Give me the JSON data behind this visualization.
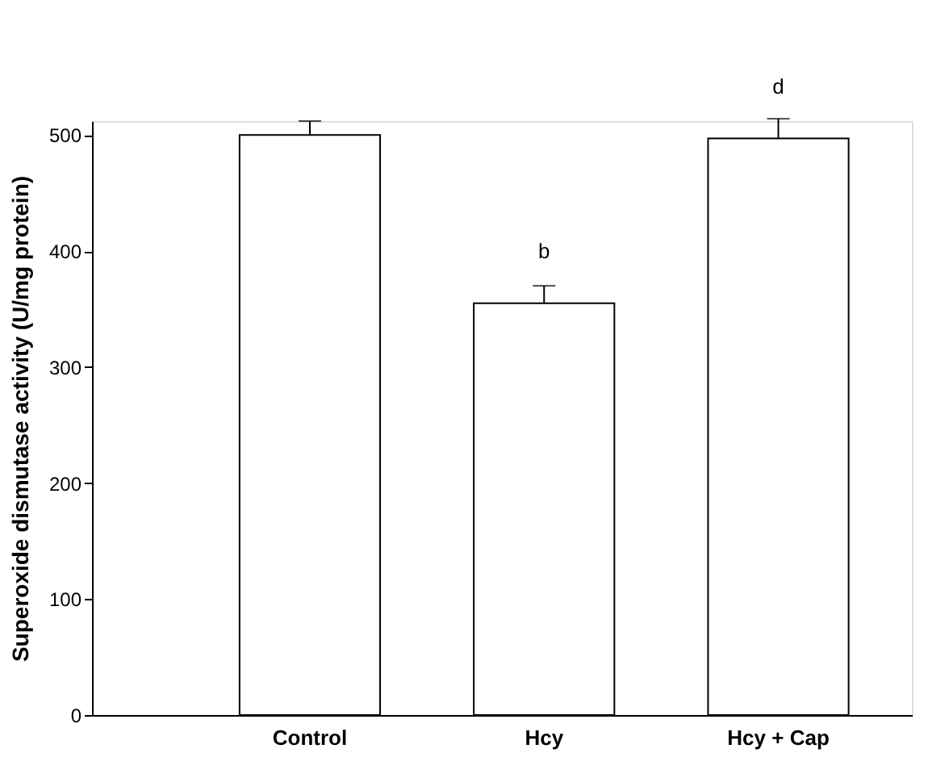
{
  "chart_data": {
    "type": "bar",
    "ylabel": "Superoxide dismutase activity (U/mg protein)",
    "categories": [
      "Control",
      "Hcy",
      "Hcy + Cap"
    ],
    "values": [
      500,
      355,
      497
    ],
    "errors": [
      [
        500,
        512
      ],
      [
        355,
        370
      ],
      [
        497,
        514
      ]
    ],
    "colors": [
      "#ffffff",
      "#ffffff",
      "#ffffff"
    ],
    "ylim": [
      0,
      512
    ],
    "yticks": [
      0,
      100,
      200,
      300,
      400,
      500
    ],
    "grid": false,
    "annotations": [
      {
        "text": "b",
        "x": "Hcy",
        "y": 355
      },
      {
        "text": "d",
        "x": "Hcy + Cap",
        "y": 497
      }
    ]
  }
}
